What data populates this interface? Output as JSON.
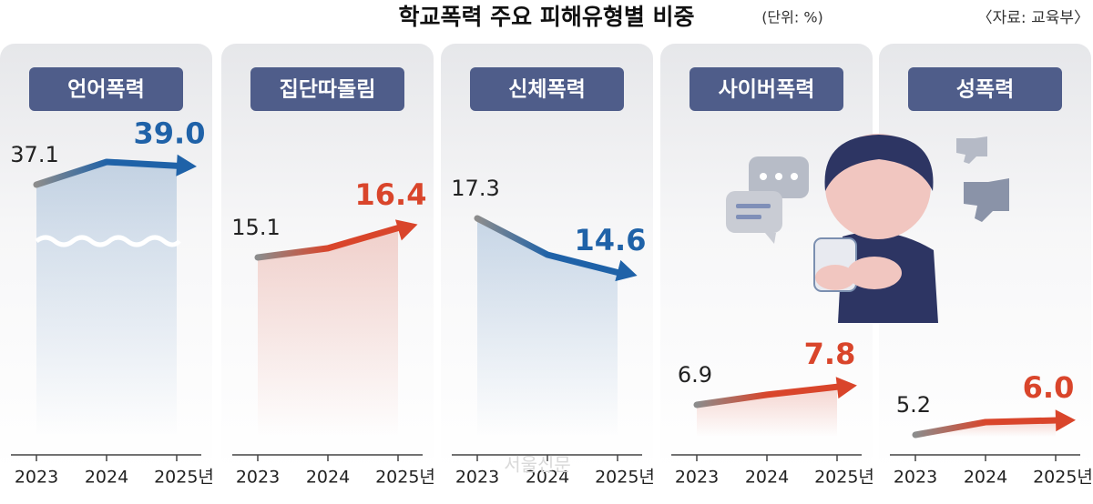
{
  "title": "학교폭력 주요 피해유형별 비중",
  "unit": "(단위: %)",
  "source": "〈자료: 교육부〉",
  "watermark": "서울신문",
  "chart_data": [
    {
      "type": "line",
      "title": "언어폭력",
      "categories": [
        "2023",
        "2024",
        "2025년"
      ],
      "values": [
        37.1,
        39.4,
        39.0
      ],
      "value_labels": [
        null,
        null,
        "39.0"
      ],
      "color": "#1f62a8"
    },
    {
      "type": "line",
      "title": "집단따돌림",
      "categories": [
        "2023",
        "2024",
        "2025년"
      ],
      "values": [
        15.1,
        15.5,
        16.4
      ],
      "value_labels": [
        null,
        null,
        null
      ],
      "color": "#d9452b"
    },
    {
      "type": "line",
      "title": "신체폭력",
      "categories": [
        "2023",
        "2024",
        "2025년"
      ],
      "values": [
        17.3,
        15.5,
        14.6
      ],
      "value_labels": [
        null,
        null,
        null
      ],
      "color": "#1f62a8"
    },
    {
      "type": "line",
      "title": "사이버폭력",
      "categories": [
        "2023",
        "2024",
        "2025년"
      ],
      "values": [
        6.9,
        7.4,
        7.8
      ],
      "value_labels": [
        null,
        null,
        null
      ],
      "color": "#d9452b"
    },
    {
      "type": "line",
      "title": "성폭력",
      "categories": [
        "2023",
        "2024",
        "2025년"
      ],
      "values": [
        5.2,
        5.9,
        6.0
      ],
      "value_labels": [
        null,
        null,
        "6.0"
      ],
      "color": "#d9452b"
    }
  ]
}
